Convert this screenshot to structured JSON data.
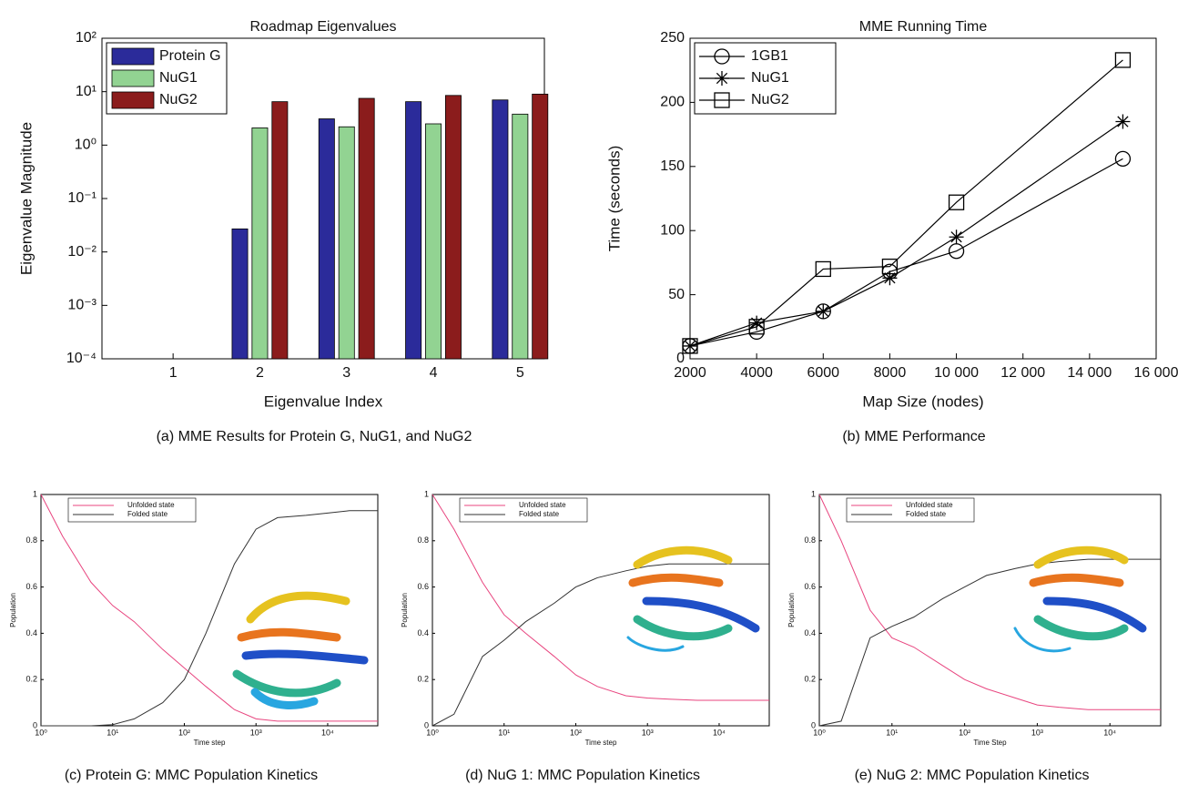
{
  "chart_data": [
    {
      "type": "bar",
      "title": "Roadmap Eigenvalues",
      "xlabel": "Eigenvalue Index",
      "ylabel": "Eigenvalue Magnitude",
      "caption": "(a) MME Results for Protein G, NuG1, and NuG2",
      "categories": [
        "1",
        "2",
        "3",
        "4",
        "5"
      ],
      "series": [
        {
          "name": "Protein G",
          "color": "#2b2b9a",
          "values": [
            null,
            0.027,
            3.1,
            6.5,
            7.0
          ]
        },
        {
          "name": "NuG1",
          "color": "#92d392",
          "values": [
            null,
            2.1,
            2.2,
            2.5,
            3.8
          ]
        },
        {
          "name": "NuG2",
          "color": "#8b1c1c",
          "values": [
            null,
            6.5,
            7.5,
            8.5,
            9.0
          ]
        }
      ],
      "ylog": true,
      "ylim": [
        0.0001,
        100
      ],
      "yticks": [
        {
          "value": 0.0001,
          "label": "10⁻⁴"
        },
        {
          "value": 0.001,
          "label": "10⁻³"
        },
        {
          "value": 0.01,
          "label": "10⁻²"
        },
        {
          "value": 0.1,
          "label": "10⁻¹"
        },
        {
          "value": 1,
          "label": "10⁰"
        },
        {
          "value": 10,
          "label": "10¹"
        },
        {
          "value": 100,
          "label": "10²"
        }
      ],
      "legend": "upper left"
    },
    {
      "type": "line",
      "title": "MME Running Time",
      "xlabel": "Map Size (nodes)",
      "ylabel": "Time (seconds)",
      "caption": "(b) MME Performance",
      "x": [
        2000,
        4000,
        6000,
        8000,
        10000,
        15000
      ],
      "series": [
        {
          "name": "1GB1",
          "color": "#000000",
          "marker": "circle",
          "values": [
            10,
            21,
            37,
            68,
            84,
            156
          ]
        },
        {
          "name": "NuG1",
          "color": "#000000",
          "marker": "star",
          "values": [
            10,
            28,
            37,
            63,
            95,
            185
          ]
        },
        {
          "name": "NuG2",
          "color": "#000000",
          "marker": "square",
          "values": [
            10,
            25,
            70,
            72,
            122,
            233
          ]
        }
      ],
      "xlim": [
        2000,
        16000
      ],
      "xticks": [
        2000,
        4000,
        6000,
        8000,
        {
          "value": 10000,
          "label": "10 000"
        },
        {
          "value": 12000,
          "label": "12 000"
        },
        {
          "value": 14000,
          "label": "14 000"
        },
        {
          "value": 16000,
          "label": "16 000"
        }
      ],
      "ylim": [
        0,
        250
      ],
      "yticks": [
        0,
        50,
        100,
        150,
        200,
        250
      ],
      "legend": "upper left"
    },
    {
      "type": "line",
      "xlabel": "Time step",
      "ylabel": "Population",
      "caption": "(c) Protein G: MMC Population Kinetics",
      "x": [
        1,
        2,
        5,
        10,
        20,
        50,
        100,
        200,
        500,
        1000,
        2000,
        5000,
        10000,
        20000,
        50000
      ],
      "series": [
        {
          "name": "Unfolded state",
          "color": "#e8457f",
          "values": [
            1.0,
            0.82,
            0.62,
            0.52,
            0.45,
            0.33,
            0.25,
            0.17,
            0.07,
            0.03,
            0.02,
            0.02,
            0.02,
            0.02,
            0.02
          ]
        },
        {
          "name": "Folded state",
          "color": "#333333",
          "values": [
            0,
            0,
            0,
            0.005,
            0.03,
            0.1,
            0.2,
            0.4,
            0.7,
            0.85,
            0.9,
            0.91,
            0.92,
            0.93,
            0.93
          ]
        }
      ],
      "xlog": true,
      "xlim": [
        1,
        50000
      ],
      "xticks": [
        {
          "value": 1,
          "label": "10⁰"
        },
        {
          "value": 10,
          "label": "10¹"
        },
        {
          "value": 100,
          "label": "10²"
        },
        {
          "value": 1000,
          "label": "10³"
        },
        {
          "value": 10000,
          "label": "10⁴"
        }
      ],
      "ylim": [
        0,
        1
      ],
      "yticks": [
        0,
        0.2,
        0.4,
        0.6,
        0.8,
        1
      ],
      "legend": "upper left"
    },
    {
      "type": "line",
      "xlabel": "Time step",
      "ylabel": "Population",
      "caption": "(d) NuG 1: MMC Population Kinetics",
      "x": [
        1,
        2,
        5,
        10,
        20,
        50,
        100,
        200,
        500,
        1000,
        2000,
        5000,
        10000,
        20000,
        50000
      ],
      "series": [
        {
          "name": "Unfolded state",
          "color": "#e8457f",
          "values": [
            1.0,
            0.85,
            0.62,
            0.48,
            0.4,
            0.3,
            0.22,
            0.17,
            0.13,
            0.12,
            0.115,
            0.11,
            0.11,
            0.11,
            0.11
          ]
        },
        {
          "name": "Folded state",
          "color": "#333333",
          "values": [
            0,
            0.05,
            0.3,
            0.37,
            0.45,
            0.53,
            0.6,
            0.64,
            0.67,
            0.69,
            0.7,
            0.7,
            0.7,
            0.7,
            0.7
          ]
        }
      ],
      "xlog": true,
      "xlim": [
        1,
        50000
      ],
      "xticks": [
        {
          "value": 1,
          "label": "10⁰"
        },
        {
          "value": 10,
          "label": "10¹"
        },
        {
          "value": 100,
          "label": "10²"
        },
        {
          "value": 1000,
          "label": "10³"
        },
        {
          "value": 10000,
          "label": "10⁴"
        }
      ],
      "ylim": [
        0,
        1
      ],
      "yticks": [
        0,
        0.2,
        0.4,
        0.6,
        0.8,
        1
      ],
      "legend": "upper left"
    },
    {
      "type": "line",
      "xlabel": "Time Step",
      "ylabel": "Population",
      "caption": "(e) NuG 2: MMC Population Kinetics",
      "x": [
        1,
        2,
        5,
        10,
        20,
        50,
        100,
        200,
        500,
        1000,
        2000,
        5000,
        10000,
        20000,
        50000
      ],
      "series": [
        {
          "name": "Unfolded state",
          "color": "#e8457f",
          "values": [
            1.0,
            0.8,
            0.5,
            0.38,
            0.34,
            0.26,
            0.2,
            0.16,
            0.12,
            0.09,
            0.08,
            0.07,
            0.07,
            0.07,
            0.07
          ]
        },
        {
          "name": "Folded state",
          "color": "#333333",
          "values": [
            0,
            0.02,
            0.38,
            0.43,
            0.47,
            0.55,
            0.6,
            0.65,
            0.68,
            0.7,
            0.71,
            0.72,
            0.72,
            0.72,
            0.72
          ]
        }
      ],
      "xlog": true,
      "xlim": [
        1,
        50000
      ],
      "xticks": [
        {
          "value": 1,
          "label": "10⁰"
        },
        {
          "value": 10,
          "label": "10¹"
        },
        {
          "value": 100,
          "label": "10²"
        },
        {
          "value": 1000,
          "label": "10³"
        },
        {
          "value": 10000,
          "label": "10⁴"
        }
      ],
      "ylim": [
        0,
        1
      ],
      "yticks": [
        0,
        0.2,
        0.4,
        0.6,
        0.8,
        1
      ],
      "legend": "upper left"
    }
  ]
}
